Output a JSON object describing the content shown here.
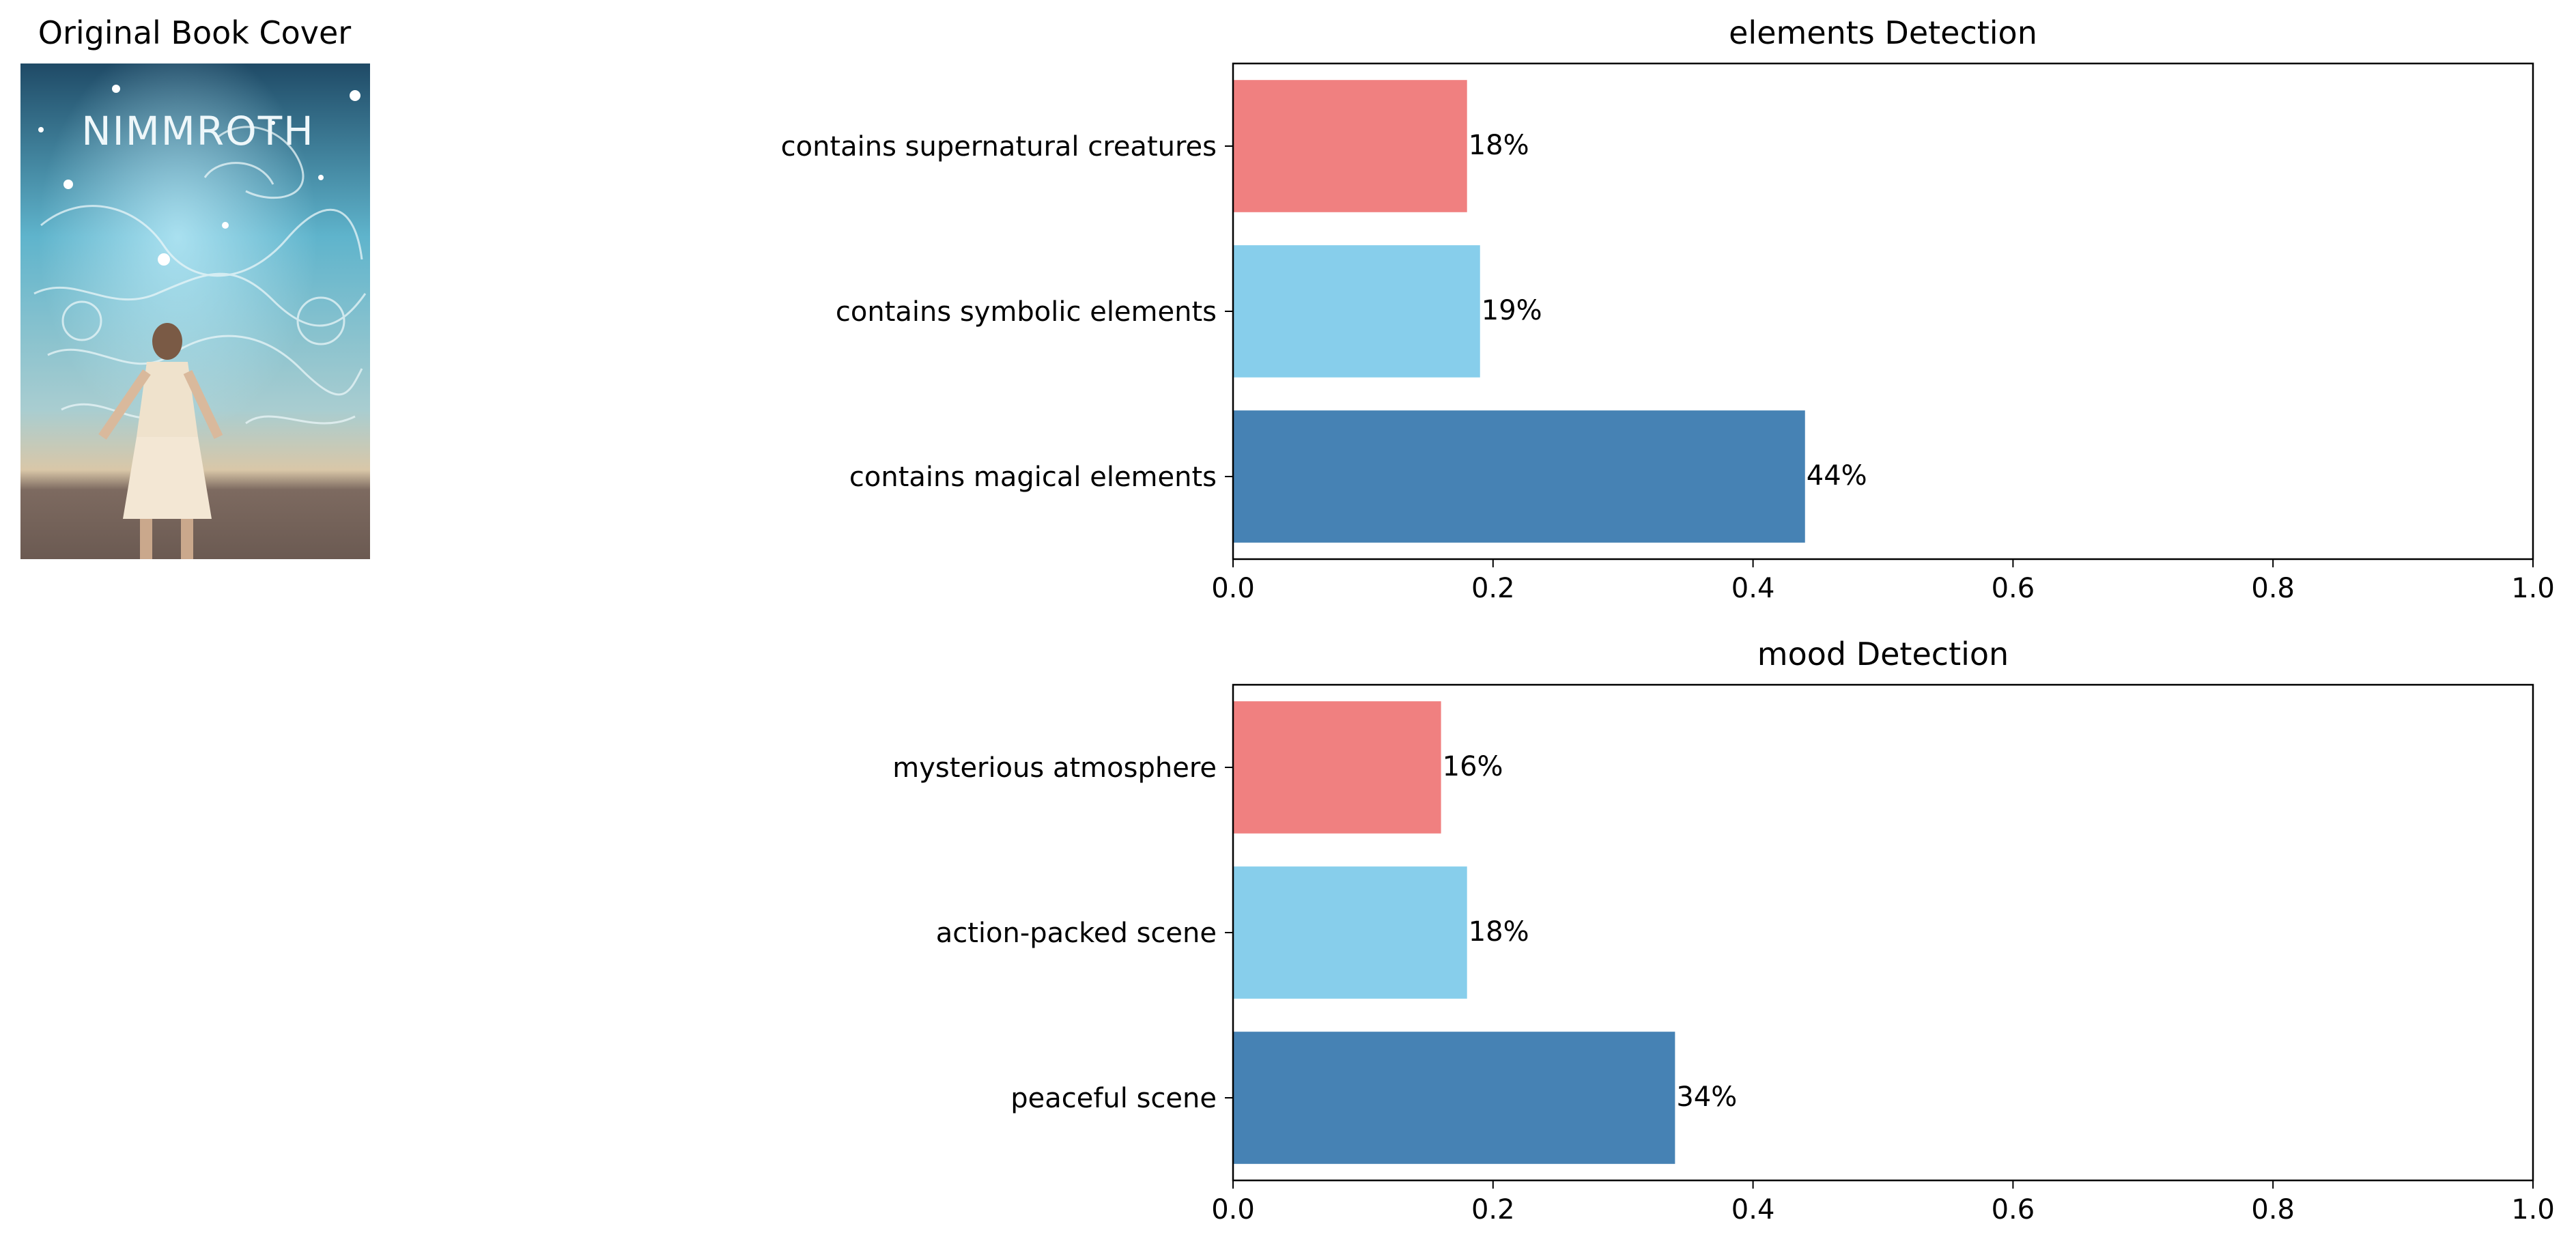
{
  "figure": {
    "image_title": "Original Book Cover",
    "cover": {
      "title_text": "NIMMROTH",
      "sky_top": "#1f4a66",
      "sky_mid": "#5fb4cc",
      "sky_low": "#d9c7a8",
      "ground": "#7d6a60"
    }
  },
  "chart_data": [
    {
      "type": "bar",
      "orientation": "horizontal",
      "title": "elements Detection",
      "categories": [
        "contains supernatural creatures",
        "contains symbolic elements",
        "contains magical elements"
      ],
      "values": [
        0.18,
        0.19,
        0.44
      ],
      "labels": [
        "18%",
        "19%",
        "44%"
      ],
      "colors": [
        "#f08080",
        "#87ceeb",
        "#4682b4"
      ],
      "xlim": [
        0,
        1.0
      ],
      "xticks": [
        "0.0",
        "0.2",
        "0.4",
        "0.6",
        "0.8",
        "1.0"
      ],
      "grid": false
    },
    {
      "type": "bar",
      "orientation": "horizontal",
      "title": "mood Detection",
      "categories": [
        "mysterious atmosphere",
        "action-packed scene",
        "peaceful scene"
      ],
      "values": [
        0.16,
        0.18,
        0.34
      ],
      "labels": [
        "16%",
        "18%",
        "34%"
      ],
      "colors": [
        "#f08080",
        "#87ceeb",
        "#4682b4"
      ],
      "xlim": [
        0,
        1.0
      ],
      "xticks": [
        "0.0",
        "0.2",
        "0.4",
        "0.6",
        "0.8",
        "1.0"
      ],
      "grid": false
    }
  ]
}
